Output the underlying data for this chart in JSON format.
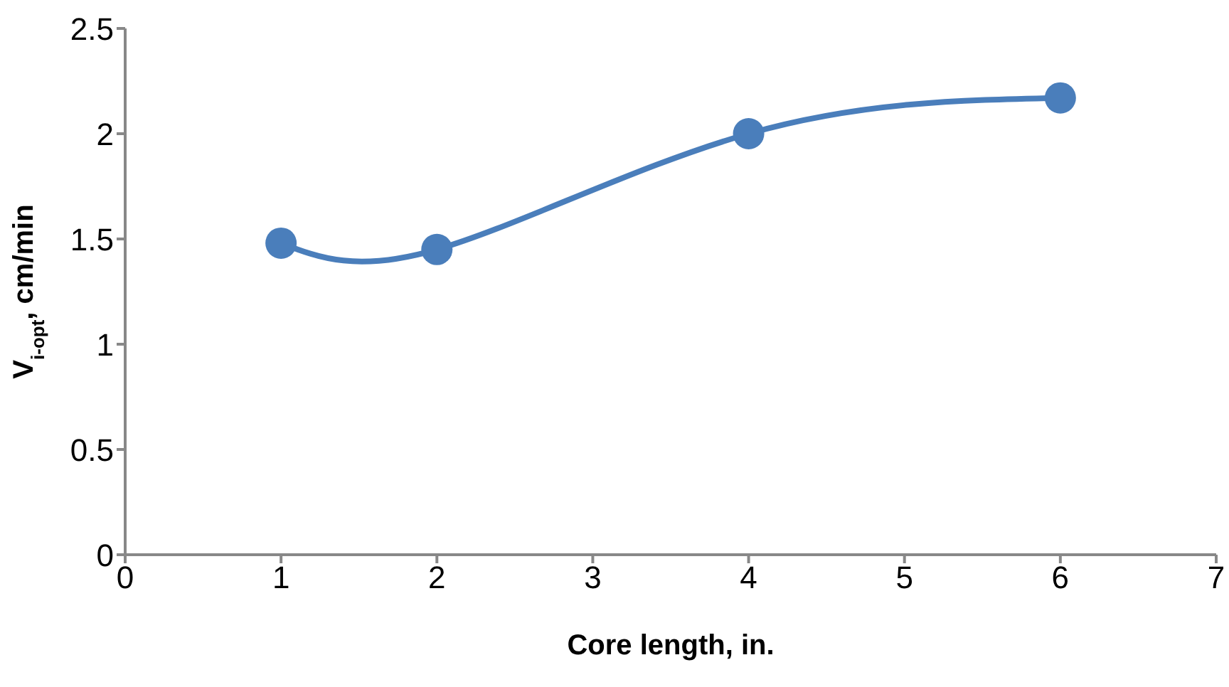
{
  "chart_data": {
    "type": "line",
    "xlabel": "Core length, in.",
    "ylabel": "V$_{i-opt}$, cm/min",
    "x": [
      1,
      2,
      4,
      6
    ],
    "series": [
      {
        "color": "#4a7ebb",
        "values": [
          1.48,
          1.45,
          2.0,
          2.17
        ]
      }
    ],
    "xlim": [
      0,
      7
    ],
    "xticks": [
      0,
      1,
      2,
      3,
      4,
      5,
      6,
      7
    ],
    "ylim": [
      0,
      2.5
    ],
    "yticks": [
      0,
      0.5,
      1,
      1.5,
      2,
      2.5
    ],
    "grid": false,
    "legend": false,
    "marker": "circle",
    "line_style": "solid"
  }
}
